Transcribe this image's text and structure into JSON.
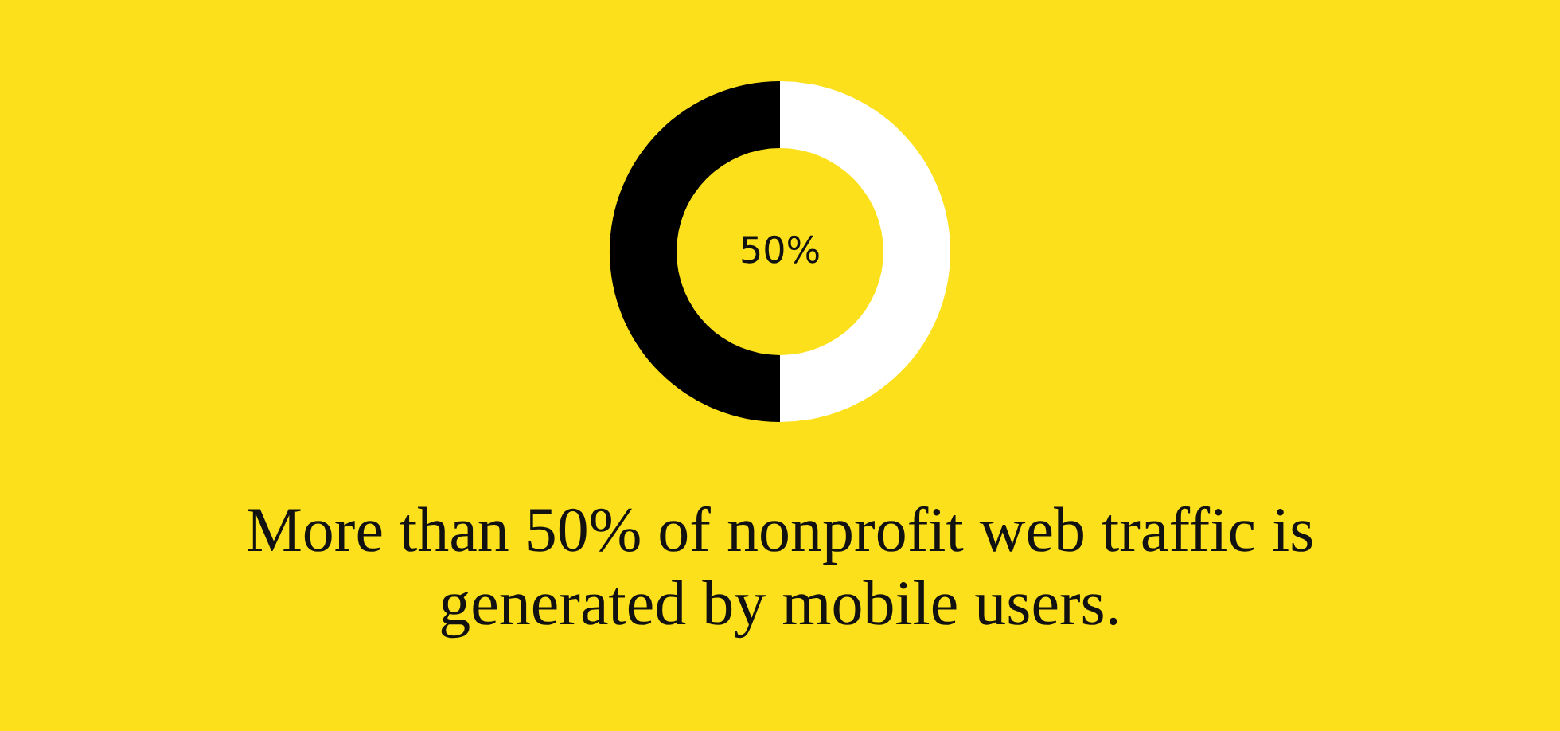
{
  "chart_data": {
    "type": "donut",
    "title": "More than 50% of nonprofit web traffic is generated by mobile users.",
    "categories": [
      null,
      null
    ],
    "values": [
      50,
      50
    ],
    "colors": [
      "#ffffff",
      "#000000"
    ],
    "annotations": [
      "50%"
    ]
  }
}
